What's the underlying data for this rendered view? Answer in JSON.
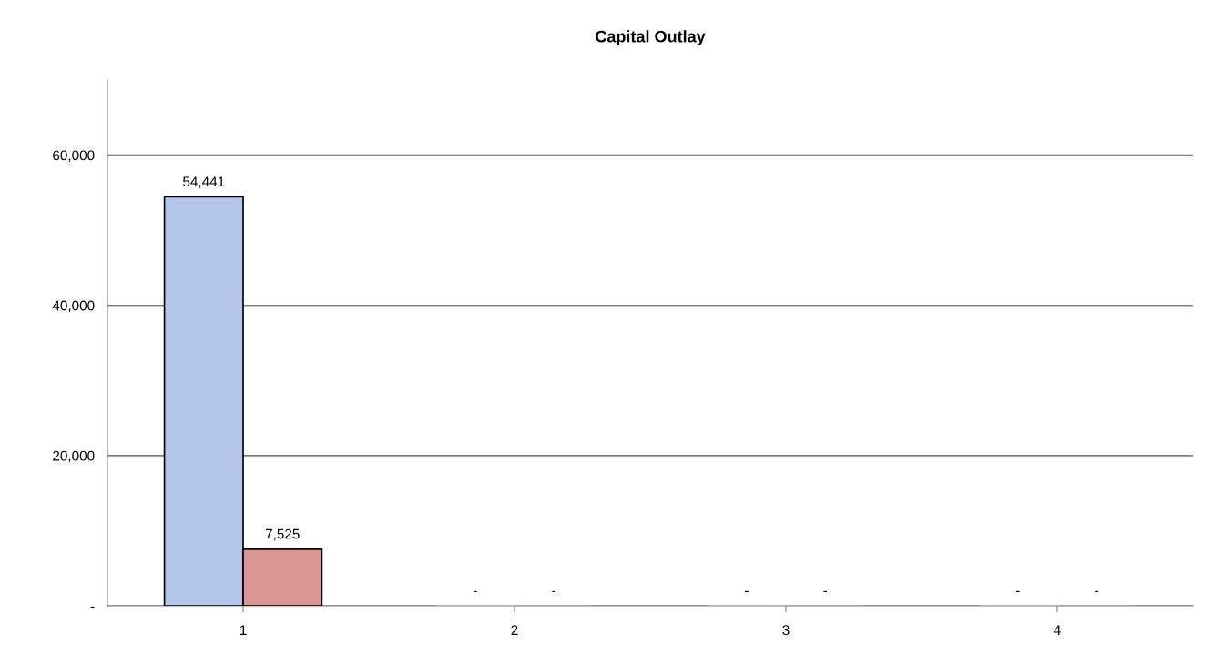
{
  "chart_data": {
    "type": "bar",
    "title": "Capital Outlay",
    "categories": [
      "1",
      "2",
      "3",
      "4"
    ],
    "series": [
      {
        "color": "#b4c6ea",
        "values": [
          54441,
          0,
          0,
          0
        ],
        "value_labels": [
          "54,441",
          "-",
          "-",
          "-"
        ]
      },
      {
        "color": "#d99694",
        "values": [
          7525,
          0,
          0,
          0
        ],
        "value_labels": [
          "7,525",
          "-",
          "-",
          "-"
        ]
      }
    ],
    "ylim": [
      0,
      70000
    ],
    "yticks": [
      {
        "value": 0,
        "label": "-"
      },
      {
        "value": 20000,
        "label": "20,000"
      },
      {
        "value": 40000,
        "label": "40,000"
      },
      {
        "value": 60000,
        "label": "60,000"
      }
    ],
    "grid": "y",
    "legend": false
  }
}
